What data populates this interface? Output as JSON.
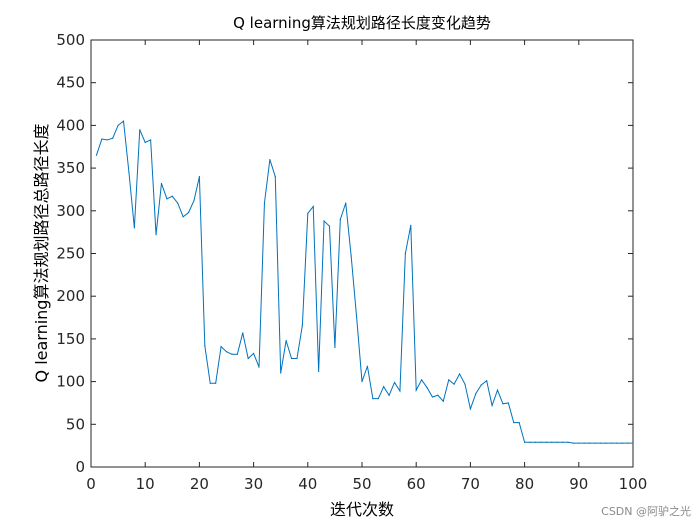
{
  "chart_data": {
    "type": "line",
    "title": "Q learning算法规划路径长度变化趋势",
    "xlabel": "迭代次数",
    "ylabel": "Q learning算法规划路径总路径长度",
    "xlim": [
      0,
      100
    ],
    "ylim": [
      0,
      500
    ],
    "xticks": [
      0,
      10,
      20,
      30,
      40,
      50,
      60,
      70,
      80,
      90,
      100
    ],
    "yticks": [
      0,
      50,
      100,
      150,
      200,
      250,
      300,
      350,
      400,
      450,
      500
    ],
    "grid": false,
    "line_color": "#0072BD",
    "series": [
      {
        "x": [
          1,
          2,
          3,
          4,
          5,
          6,
          7,
          8,
          9,
          10,
          11,
          12,
          13,
          14,
          15,
          16,
          17,
          18,
          19,
          20,
          21,
          22,
          23,
          24,
          25,
          26,
          27,
          28,
          29,
          30,
          31,
          32,
          33,
          34,
          35,
          36,
          37,
          38,
          39,
          40,
          41,
          42,
          43,
          44,
          45,
          46,
          47,
          48,
          49,
          50,
          51,
          52,
          53,
          54,
          55,
          56,
          57,
          58,
          59,
          60,
          61,
          62,
          63,
          64,
          65,
          66,
          67,
          68,
          69,
          70,
          71,
          72,
          73,
          74,
          75,
          76,
          77,
          78,
          79,
          80,
          81,
          82,
          83,
          84,
          85,
          86,
          87,
          88,
          89,
          90,
          91,
          92,
          93,
          94,
          95,
          96,
          97,
          98,
          99,
          100
        ],
        "values": [
          365,
          384,
          383,
          385,
          400,
          405,
          345,
          280,
          395,
          380,
          383,
          272,
          332,
          314,
          317,
          309,
          293,
          298,
          312,
          340,
          142,
          98,
          98,
          141,
          135,
          132,
          132,
          157,
          127,
          133,
          117,
          309,
          360,
          340,
          110,
          148,
          127,
          127,
          166,
          297,
          305,
          112,
          288,
          282,
          140,
          290,
          309,
          247,
          176,
          100,
          118,
          80,
          80,
          94,
          84,
          99,
          89,
          250,
          283,
          90,
          102,
          93,
          82,
          84,
          77,
          102,
          97,
          109,
          97,
          68,
          86,
          96,
          101,
          72,
          90,
          74,
          75,
          52,
          52,
          29,
          29,
          29,
          29,
          29,
          29,
          29,
          29,
          29,
          28,
          28,
          28,
          28,
          28,
          28,
          28,
          28,
          28,
          28,
          28,
          28
        ]
      }
    ]
  },
  "watermark": "CSDN @阿驴之光"
}
